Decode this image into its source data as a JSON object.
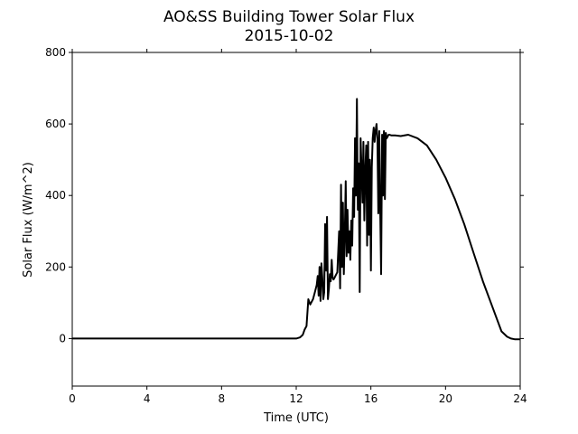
{
  "chart_data": {
    "type": "line",
    "title": "AO&SS Building Tower Solar Flux",
    "subtitle": "2015-10-02",
    "xlabel": "Time (UTC)",
    "ylabel": "Solar Flux (W/m^2)",
    "xlim": [
      0,
      24
    ],
    "ylim": [
      -133,
      800
    ],
    "xticks": [
      0,
      4,
      8,
      12,
      16,
      20,
      24
    ],
    "yticks": [
      0,
      200,
      400,
      600,
      800
    ],
    "grid": false,
    "legend": "none",
    "line_color": "#000000",
    "series": [
      {
        "x": [
          0,
          11.5,
          12.0,
          12.2,
          12.35,
          12.45,
          12.55,
          12.65,
          12.75,
          12.9,
          13.0,
          13.1,
          13.15,
          13.2,
          13.25,
          13.3,
          13.35,
          13.4,
          13.45,
          13.5,
          13.55,
          13.6,
          13.65,
          13.7,
          13.75,
          13.8,
          13.85,
          13.9,
          13.95,
          14.0,
          14.05,
          14.1,
          14.15,
          14.2,
          14.3,
          14.35,
          14.4,
          14.45,
          14.5,
          14.55,
          14.6,
          14.65,
          14.7,
          14.75,
          14.8,
          14.85,
          14.9,
          14.95,
          15.0,
          15.05,
          15.1,
          15.15,
          15.2,
          15.25,
          15.3,
          15.35,
          15.4,
          15.45,
          15.5,
          15.55,
          15.6,
          15.65,
          15.7,
          15.75,
          15.8,
          15.85,
          15.9,
          15.95,
          16.0,
          16.05,
          16.1,
          16.15,
          16.2,
          16.25,
          16.3,
          16.35,
          16.4,
          16.45,
          16.5,
          16.55,
          16.6,
          16.65,
          16.7,
          16.75,
          16.8,
          16.85,
          16.9,
          16.95,
          17.0,
          17.1,
          17.3,
          17.6,
          18.0,
          18.5,
          19.0,
          19.5,
          20.0,
          20.5,
          21.0,
          21.5,
          22.0,
          22.5,
          23.0,
          23.3,
          23.5,
          23.7,
          24.0
        ],
        "y": [
          0,
          0,
          0,
          3,
          10,
          25,
          35,
          110,
          95,
          110,
          130,
          150,
          175,
          120,
          200,
          105,
          210,
          170,
          110,
          130,
          320,
          190,
          340,
          110,
          140,
          180,
          160,
          220,
          170,
          165,
          170,
          175,
          180,
          185,
          300,
          140,
          430,
          200,
          380,
          180,
          280,
          440,
          230,
          360,
          240,
          300,
          220,
          330,
          260,
          420,
          340,
          560,
          400,
          670,
          360,
          490,
          130,
          560,
          480,
          380,
          550,
          330,
          470,
          540,
          260,
          550,
          290,
          500,
          190,
          480,
          560,
          590,
          550,
          580,
          600,
          560,
          350,
          580,
          360,
          180,
          570,
          400,
          580,
          390,
          575,
          560,
          565,
          570,
          570,
          568,
          568,
          566,
          570,
          560,
          540,
          500,
          450,
          390,
          320,
          240,
          160,
          90,
          20,
          5,
          0,
          -2,
          -2
        ]
      }
    ]
  }
}
